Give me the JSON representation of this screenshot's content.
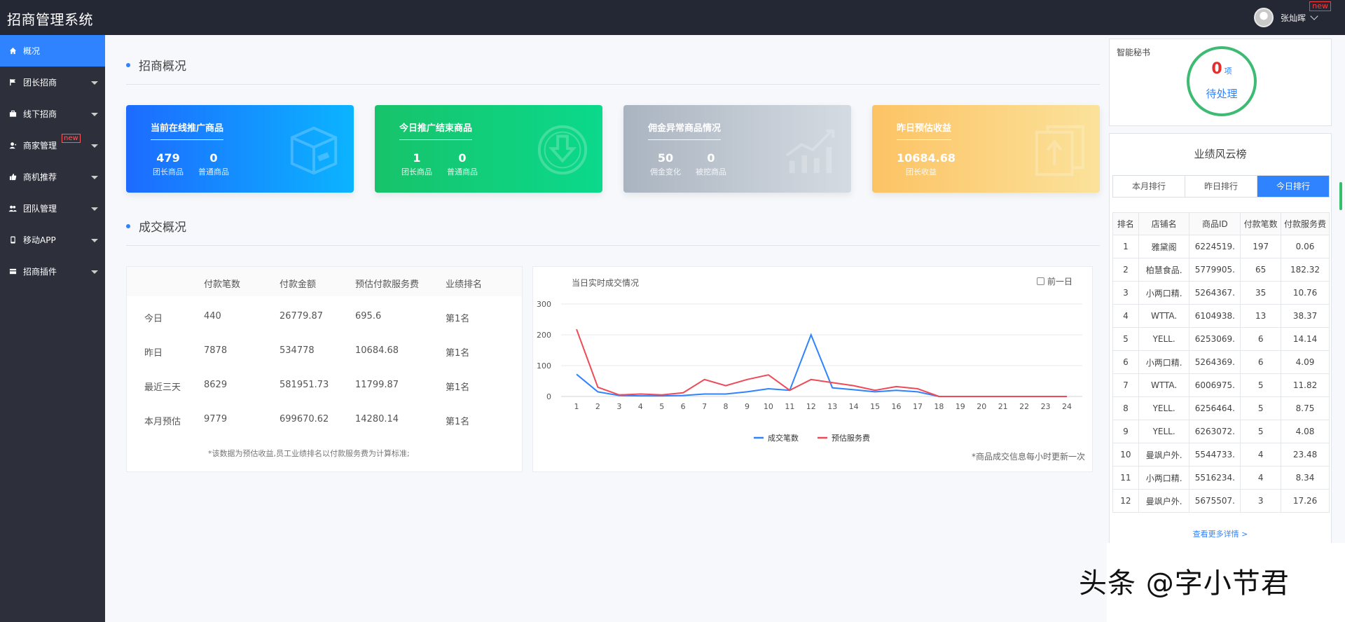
{
  "app": {
    "title": "招商管理系统"
  },
  "user": {
    "name": "张灿晖",
    "badge": "new"
  },
  "sidebar": {
    "items": [
      {
        "label": "概况",
        "icon": "home-icon",
        "active": true,
        "badge": ""
      },
      {
        "label": "团长招商",
        "icon": "flag-icon",
        "badge": ""
      },
      {
        "label": "线下招商",
        "icon": "briefcase-icon",
        "badge": ""
      },
      {
        "label": "商家管理",
        "icon": "merchant-icon",
        "badge": "new"
      },
      {
        "label": "商机推荐",
        "icon": "thumbs-up-icon",
        "badge": ""
      },
      {
        "label": "团队管理",
        "icon": "team-icon",
        "badge": ""
      },
      {
        "label": "移动APP",
        "icon": "mobile-icon",
        "badge": ""
      },
      {
        "label": "招商插件",
        "icon": "plugin-icon",
        "badge": ""
      }
    ]
  },
  "overview": {
    "title": "招商概况",
    "cards": [
      {
        "title": "当前在线推广商品",
        "stats": [
          {
            "num": "479",
            "label": "团长商品"
          },
          {
            "num": "0",
            "label": "普通商品"
          }
        ],
        "icon": "box-icon",
        "colors": [
          "#1d6bff",
          "#0bb4ff"
        ]
      },
      {
        "title": "今日推广结束商品",
        "stats": [
          {
            "num": "1",
            "label": "团长商品"
          },
          {
            "num": "0",
            "label": "普通商品"
          }
        ],
        "icon": "download-circle-icon",
        "colors": [
          "#17c36a",
          "#0bd98c"
        ]
      },
      {
        "title": "佣金异常商品情况",
        "stats": [
          {
            "num": "50",
            "label": "佣金变化"
          },
          {
            "num": "0",
            "label": "被挖商品"
          }
        ],
        "icon": "trend-icon",
        "colors": [
          "#aab4c0",
          "#d5dbe2"
        ]
      },
      {
        "title": "昨日预估收益",
        "stats": [
          {
            "num": "10684.68",
            "label": "团长收益"
          }
        ],
        "icon": "upload-doc-icon",
        "colors": [
          "#fcc364",
          "#fbe29b"
        ]
      }
    ]
  },
  "deals": {
    "title": "成交概况",
    "table": {
      "headers": [
        "付款笔数",
        "付款金额",
        "预估付款服务费",
        "业绩排名"
      ],
      "rows": [
        {
          "label": "今日",
          "count": "440",
          "amount": "26779.87",
          "fee": "695.6",
          "rank": "第1名"
        },
        {
          "label": "昨日",
          "count": "7878",
          "amount": "534778",
          "fee": "10684.68",
          "rank": "第1名"
        },
        {
          "label": "最近三天",
          "count": "8629",
          "amount": "581951.73",
          "fee": "11799.87",
          "rank": "第1名"
        },
        {
          "label": "本月预估",
          "count": "9779",
          "amount": "699670.62",
          "fee": "14280.14",
          "rank": "第1名"
        }
      ],
      "note": "*该数据为预估收益,员工业绩排名以付款服务费为计算标准;"
    },
    "chart": {
      "title": "当日实时成交情况",
      "prev_day_label": "前一日",
      "note": "*商品成交信息每小时更新一次"
    }
  },
  "chart_data": {
    "type": "line",
    "title": "当日实时成交情况",
    "x": [
      1,
      2,
      3,
      4,
      5,
      6,
      7,
      8,
      9,
      10,
      11,
      12,
      13,
      14,
      15,
      16,
      17,
      18,
      19,
      20,
      21,
      22,
      23,
      24
    ],
    "ylim": [
      0,
      300
    ],
    "yticks": [
      0,
      100,
      200,
      300
    ],
    "grid": true,
    "legend": "bottom-center",
    "series": [
      {
        "name": "成交笔数",
        "color": "#2f83ff",
        "values": [
          72,
          15,
          3,
          2,
          2,
          3,
          8,
          8,
          15,
          25,
          20,
          200,
          28,
          22,
          15,
          20,
          15,
          0,
          0,
          0,
          0,
          0,
          0,
          0
        ]
      },
      {
        "name": "预估服务费",
        "color": "#ee4a57",
        "values": [
          218,
          30,
          5,
          8,
          5,
          12,
          55,
          35,
          55,
          70,
          20,
          55,
          45,
          35,
          20,
          32,
          25,
          0,
          0,
          0,
          0,
          0,
          0,
          0
        ]
      }
    ]
  },
  "assistant": {
    "title": "智能秘书",
    "count": "0",
    "unit": "项",
    "status": "待处理",
    "ring_color": "#3dbb73"
  },
  "ranking": {
    "title": "业绩风云榜",
    "tabs": [
      "本月排行",
      "昨日排行",
      "今日排行"
    ],
    "active_tab": 2,
    "headers": [
      "排名",
      "店铺名",
      "商品ID",
      "付款笔数",
      "付款服务费"
    ],
    "rows": [
      [
        "1",
        "雅黛阁",
        "6224519.",
        "197",
        "0.06"
      ],
      [
        "2",
        "柏慧食品.",
        "5779905.",
        "65",
        "182.32"
      ],
      [
        "3",
        "小两口精.",
        "5264367.",
        "35",
        "10.76"
      ],
      [
        "4",
        "WTTA.",
        "6104938.",
        "13",
        "38.37"
      ],
      [
        "5",
        "YELL.",
        "6253069.",
        "6",
        "14.14"
      ],
      [
        "6",
        "小两口精.",
        "5264369.",
        "6",
        "4.09"
      ],
      [
        "7",
        "WTTA.",
        "6006975.",
        "5",
        "11.82"
      ],
      [
        "8",
        "YELL.",
        "6256464.",
        "5",
        "8.75"
      ],
      [
        "9",
        "YELL.",
        "6263072.",
        "5",
        "4.08"
      ],
      [
        "10",
        "曼飒户外.",
        "5544733.",
        "4",
        "23.48"
      ],
      [
        "11",
        "小两口精.",
        "5516234.",
        "4",
        "8.34"
      ],
      [
        "12",
        "曼飒户外.",
        "5675507.",
        "3",
        "17.26"
      ]
    ],
    "more_label": "查看更多详情 >"
  },
  "watermark": "头条 @字小节君"
}
